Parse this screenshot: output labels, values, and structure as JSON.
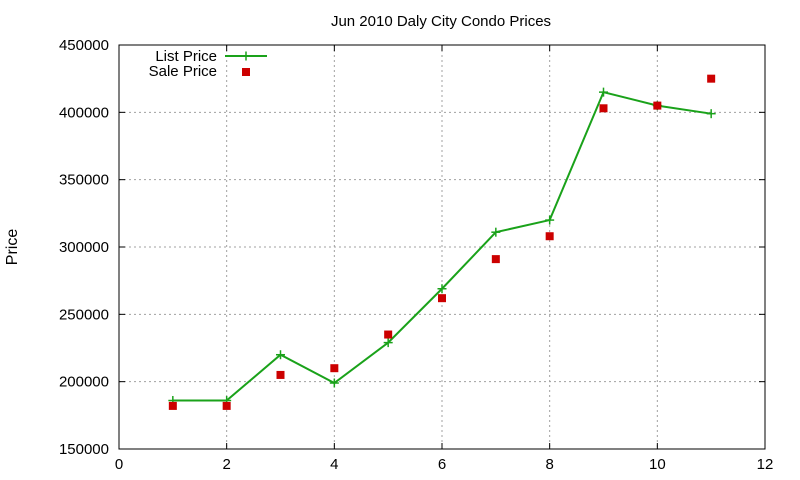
{
  "chart_data": {
    "type": "line",
    "title": "Jun 2010 Daly City Condo Prices",
    "xlabel": "",
    "ylabel": "Price",
    "xlim": [
      0,
      12
    ],
    "ylim": [
      150000,
      450000
    ],
    "xticks": [
      0,
      2,
      4,
      6,
      8,
      10,
      12
    ],
    "yticks": [
      150000,
      200000,
      250000,
      300000,
      350000,
      400000,
      450000
    ],
    "grid": true,
    "legend_position": "top-left",
    "series": [
      {
        "name": "List Price",
        "style": "line-with-plus-markers",
        "color": "#1aa21a",
        "x": [
          1,
          2,
          3,
          4,
          5,
          6,
          7,
          8,
          9,
          10,
          11
        ],
        "y": [
          186000,
          186000,
          220000,
          199000,
          229000,
          269000,
          311000,
          320000,
          415000,
          405000,
          399000
        ]
      },
      {
        "name": "Sale Price",
        "style": "square-points",
        "color": "#cc0000",
        "x": [
          1,
          2,
          3,
          4,
          5,
          6,
          7,
          8,
          9,
          10,
          11
        ],
        "y": [
          182000,
          182000,
          205000,
          210000,
          235000,
          262000,
          291000,
          308000,
          403000,
          405000,
          425000
        ]
      }
    ]
  }
}
